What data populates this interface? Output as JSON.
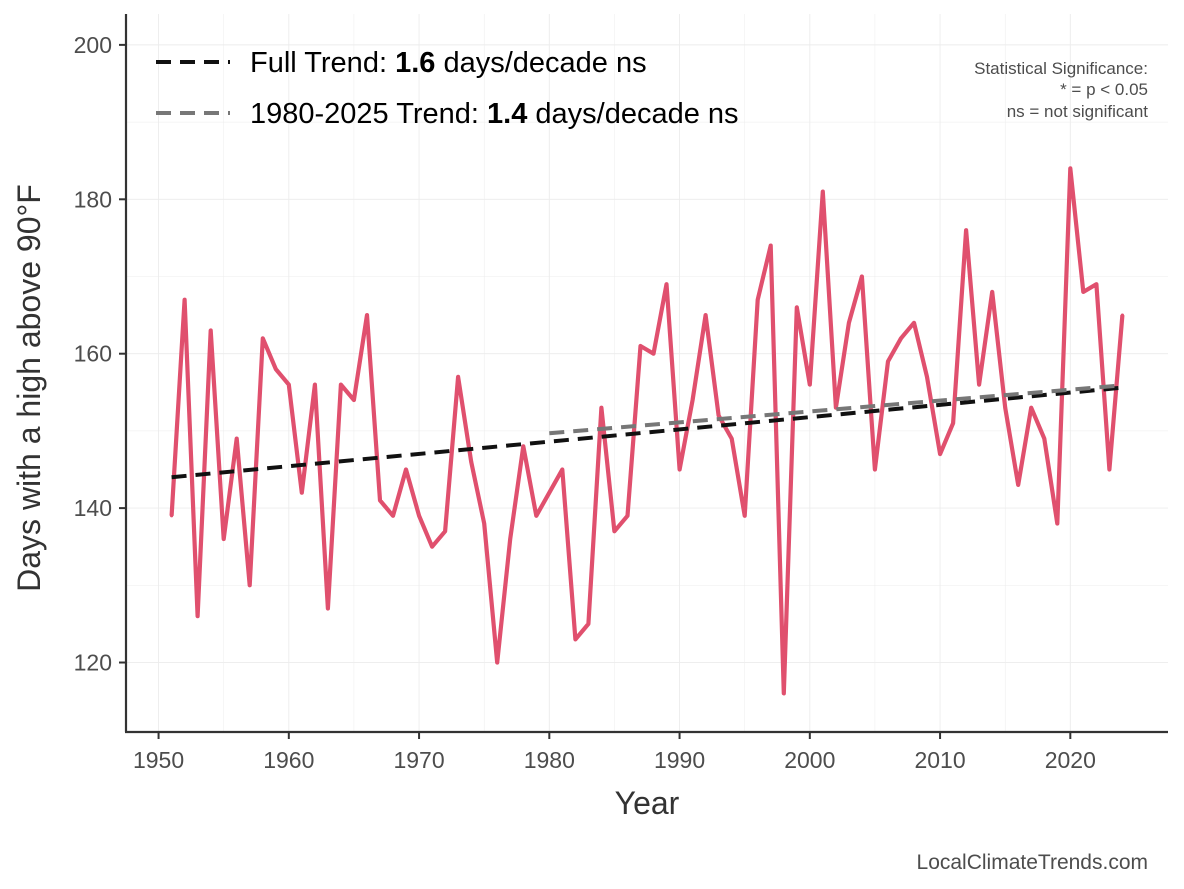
{
  "chart_data": {
    "type": "line",
    "xlabel": "Year",
    "ylabel": "Days with a high above 90°F",
    "xlim": [
      1947.5,
      2027.5
    ],
    "ylim": [
      111,
      204
    ],
    "xticks": [
      1950,
      1960,
      1970,
      1980,
      1990,
      2000,
      2010,
      2020
    ],
    "yticks": [
      120,
      140,
      160,
      180,
      200
    ],
    "grid": true,
    "series": [
      {
        "name": "Days with a high above 90°F",
        "color": "#e0506e",
        "x": [
          1951,
          1952,
          1953,
          1954,
          1955,
          1956,
          1957,
          1958,
          1959,
          1960,
          1961,
          1962,
          1963,
          1964,
          1965,
          1966,
          1967,
          1968,
          1969,
          1970,
          1971,
          1972,
          1973,
          1974,
          1975,
          1976,
          1977,
          1978,
          1979,
          1980,
          1981,
          1982,
          1983,
          1984,
          1985,
          1986,
          1987,
          1988,
          1989,
          1990,
          1991,
          1992,
          1993,
          1994,
          1995,
          1996,
          1997,
          1998,
          1999,
          2000,
          2001,
          2002,
          2003,
          2004,
          2005,
          2006,
          2007,
          2008,
          2009,
          2010,
          2011,
          2012,
          2013,
          2014,
          2015,
          2016,
          2017,
          2018,
          2019,
          2020,
          2021,
          2022,
          2023,
          2024
        ],
        "values": [
          139,
          167,
          126,
          163,
          136,
          149,
          130,
          162,
          158,
          156,
          142,
          156,
          127,
          156,
          154,
          165,
          141,
          139,
          145,
          139,
          135,
          137,
          157,
          146,
          138,
          120,
          136,
          148,
          139,
          142,
          145,
          123,
          125,
          153,
          137,
          139,
          161,
          160,
          169,
          145,
          154,
          165,
          152,
          149,
          139,
          167,
          174,
          116,
          166,
          156,
          181,
          153,
          164,
          170,
          145,
          159,
          162,
          164,
          157,
          147,
          151,
          176,
          156,
          168,
          153,
          143,
          153,
          149,
          138,
          184,
          168,
          169,
          145,
          165
        ]
      }
    ],
    "trends": [
      {
        "name": "Full Trend",
        "color": "#111111",
        "x": [
          1951,
          2024
        ],
        "values": [
          144.0,
          155.6
        ],
        "label_prefix": "Full Trend: ",
        "rate": "1.6",
        "label_suffix": " days/decade ns"
      },
      {
        "name": "1980-2025 Trend",
        "color": "#777777",
        "x": [
          1980,
          2024
        ],
        "values": [
          149.7,
          155.9
        ],
        "label_prefix": "1980-2025 Trend: ",
        "rate": "1.4",
        "label_suffix": " days/decade ns"
      }
    ],
    "annotation": {
      "line1": "Statistical Significance:",
      "line2": "* = p < 0.05",
      "line3": "ns = not significant"
    },
    "credit": "LocalClimateTrends.com"
  }
}
